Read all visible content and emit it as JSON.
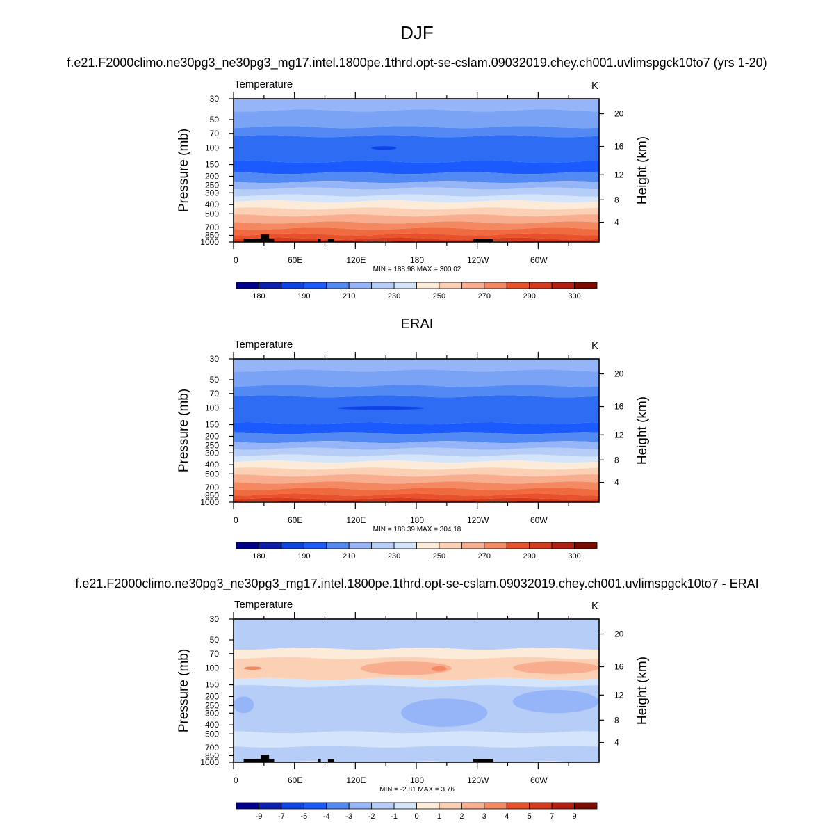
{
  "title": "DJF",
  "units_label": "K",
  "var_label": "Temperature",
  "x_tick_labels": [
    "0",
    "60E",
    "120E",
    "180",
    "120W",
    "60W"
  ],
  "y_tick_labels": [
    "30",
    "50",
    "70",
    "100",
    "150",
    "200",
    "250",
    "300",
    "400",
    "500",
    "700",
    "850",
    "1000"
  ],
  "y_right_tick_labels": [
    "20",
    "16",
    "12",
    "8",
    "4"
  ],
  "ylabel": "Pressure (mb)",
  "ylabel_right": "Height (km)",
  "chart_data": [
    {
      "type": "heatmap",
      "name": "model",
      "title": "f.e21.F2000climo.ne30pg3_ne30pg3_mg17.intel.1800pe.1thrd.opt-se-cslam.09032019.chey.ch001.uvlimspgck10to7 (yrs 1-20)",
      "subtitle": "Temperature",
      "units": "K",
      "stats": "MIN = 188.98  MAX = 300.02",
      "x_range_deg": [
        0,
        360
      ],
      "x_ticks_deg": [
        0,
        60,
        120,
        180,
        240,
        300
      ],
      "pressure_levels_mb": [
        30,
        50,
        70,
        100,
        150,
        200,
        250,
        300,
        400,
        500,
        700,
        850,
        1000
      ],
      "height_ticks_km": [
        20,
        16,
        12,
        8,
        4
      ],
      "ylim_mb": [
        1000,
        30
      ],
      "colorbar_labels": [
        "180",
        "190",
        "210",
        "230",
        "250",
        "270",
        "290",
        "300"
      ],
      "layer_bounds_mb": [
        30,
        40,
        60,
        75,
        140,
        185,
        230,
        270,
        320,
        370,
        440,
        520,
        620,
        720,
        830,
        920,
        1000
      ],
      "layer_colors": [
        "#96b5f8",
        "#7aa2f5",
        "#5289f3",
        "#2e6cf4",
        "#1a5aff",
        "#5289f3",
        "#96b5f8",
        "#b6cdf8",
        "#d3e4fb",
        "#fdebd9",
        "#fbd0b5",
        "#f8ad8f",
        "#f48961",
        "#f06a3f",
        "#e8512b",
        "#d63b1e"
      ],
      "annotations": [
        {
          "type": "cold_core",
          "lon": 148,
          "p_mb": 100,
          "color": "#0d44e6"
        }
      ],
      "topography_lon": [
        [
          10,
          40,
          920
        ],
        [
          27,
          35,
          830
        ],
        [
          83,
          86,
          920
        ],
        [
          93,
          99,
          920
        ],
        [
          236,
          256,
          920
        ]
      ]
    },
    {
      "type": "heatmap",
      "name": "obs",
      "title": "ERAI",
      "subtitle": "Temperature",
      "units": "K",
      "stats": "MIN = 188.39  MAX = 304.18",
      "x_range_deg": [
        0,
        360
      ],
      "x_ticks_deg": [
        0,
        60,
        120,
        180,
        240,
        300
      ],
      "pressure_levels_mb": [
        30,
        50,
        70,
        100,
        150,
        200,
        250,
        300,
        400,
        500,
        700,
        850,
        1000
      ],
      "height_ticks_km": [
        20,
        16,
        12,
        8,
        4
      ],
      "ylim_mb": [
        1000,
        30
      ],
      "colorbar_labels": [
        "180",
        "190",
        "210",
        "230",
        "250",
        "270",
        "290",
        "300"
      ],
      "layer_bounds_mb": [
        30,
        40,
        58,
        75,
        145,
        185,
        230,
        270,
        320,
        370,
        440,
        520,
        620,
        720,
        830,
        920,
        1000
      ],
      "layer_colors": [
        "#96b5f8",
        "#7aa2f5",
        "#5289f3",
        "#2e6cf4",
        "#1a5aff",
        "#5289f3",
        "#96b5f8",
        "#b6cdf8",
        "#d3e4fb",
        "#fdebd9",
        "#fbd0b5",
        "#f8ad8f",
        "#f48961",
        "#f06a3f",
        "#e8512b",
        "#d63b1e"
      ],
      "annotations": [
        {
          "type": "cold_core",
          "lon": 145,
          "p_mb": 100,
          "color": "#0d44e6"
        }
      ]
    },
    {
      "type": "heatmap",
      "name": "difference",
      "title": "f.e21.F2000climo.ne30pg3_ne30pg3_mg17.intel.1800pe.1thrd.opt-se-cslam.09032019.chey.ch001.uvlimspgck10to7 - ERAI",
      "subtitle": "Temperature",
      "units": "K",
      "stats": "MIN =  -2.81  MAX =   3.76",
      "x_range_deg": [
        0,
        360
      ],
      "x_ticks_deg": [
        0,
        60,
        120,
        180,
        240,
        300
      ],
      "pressure_levels_mb": [
        30,
        50,
        70,
        100,
        150,
        200,
        250,
        300,
        400,
        500,
        700,
        850,
        1000
      ],
      "height_ticks_km": [
        20,
        16,
        12,
        8,
        4
      ],
      "ylim_mb": [
        1000,
        30
      ],
      "colorbar_labels": [
        "-9",
        "-7",
        "-5",
        "-4",
        "-3",
        "-2",
        "-1",
        "0",
        "1",
        "2",
        "3",
        "4",
        "5",
        "7",
        "9"
      ],
      "layer_bounds_mb": [
        30,
        62,
        78,
        130,
        155,
        480,
        680,
        1000
      ],
      "layer_colors": [
        "#b6cdf8",
        "#fdebd9",
        "#fbd0b5",
        "#d3e4fb",
        "#b6cdf8",
        "#d3e4fb",
        "#b6cdf8"
      ],
      "warm_blobs": [
        {
          "lon": [
            125,
            215
          ],
          "p_mb": [
            85,
            118
          ],
          "color": "#f8ad8f"
        },
        {
          "lon": [
            195,
            210
          ],
          "p_mb": [
            95,
            108
          ],
          "color": "#f48961"
        },
        {
          "lon": [
            10,
            28
          ],
          "p_mb": [
            96,
            104
          ],
          "color": "#f48961"
        },
        {
          "lon": [
            275,
            360
          ],
          "p_mb": [
            85,
            115
          ],
          "color": "#f8ad8f"
        }
      ],
      "cool_blobs": [
        {
          "lon": [
            165,
            250
          ],
          "p_mb": [
            210,
            420
          ],
          "color": "#96b5f8"
        },
        {
          "lon": [
            0,
            20
          ],
          "p_mb": [
            200,
            300
          ],
          "color": "#96b5f8"
        },
        {
          "lon": [
            275,
            360
          ],
          "p_mb": [
            170,
            300
          ],
          "color": "#96b5f8"
        }
      ],
      "topography_lon": [
        [
          10,
          40,
          920
        ],
        [
          27,
          35,
          830
        ],
        [
          83,
          86,
          920
        ],
        [
          93,
          99,
          920
        ],
        [
          236,
          256,
          920
        ]
      ]
    }
  ],
  "colorbar_abs": [
    "#00008f",
    "#0d1faf",
    "#0d44e6",
    "#1a5aff",
    "#5289f3",
    "#96b5f8",
    "#b6cdf8",
    "#d3e4fb",
    "#fdebd9",
    "#fbd0b5",
    "#f8ad8f",
    "#f48961",
    "#e8512b",
    "#d63b1e",
    "#b51f12",
    "#7d0b00"
  ],
  "colorbar_diff": [
    "#00008f",
    "#0d1faf",
    "#0d44e6",
    "#1a5aff",
    "#5289f3",
    "#96b5f8",
    "#b6cdf8",
    "#d3e4fb",
    "#fdebd9",
    "#fbd0b5",
    "#f8ad8f",
    "#f48961",
    "#e8512b",
    "#d63b1e",
    "#b51f12",
    "#7d0b00"
  ]
}
